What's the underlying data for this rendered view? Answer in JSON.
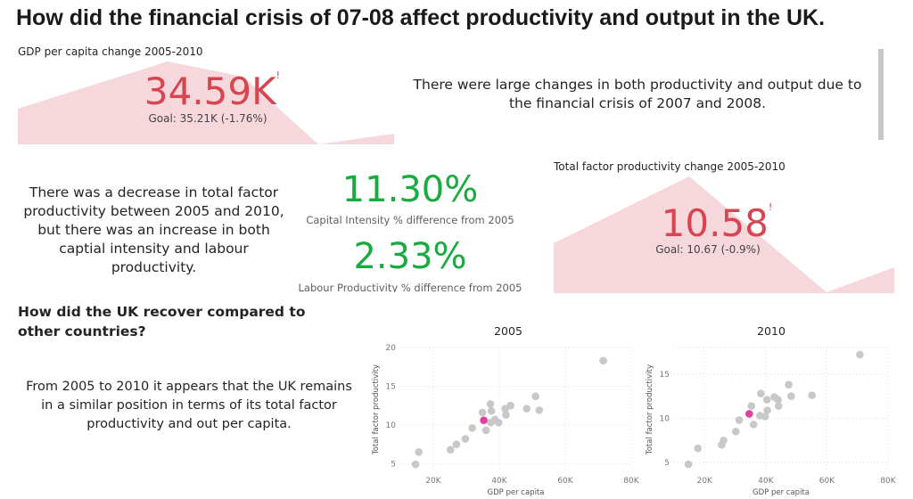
{
  "title": "How did the financial crisis of 07-08 affect productivity and output in the UK.",
  "gdp_card": {
    "title": "GDP per capita change 2005-2010",
    "value": "34.59K",
    "alert": "!",
    "goal": "Goal: 35.21K (-1.76%)",
    "status_color": "#d64550",
    "trend_fill": "#f6d7db"
  },
  "intro_text": "There were large changes in both productivity and output due to the financial crisis of 2007 and 2008.",
  "summary_text": "There was a decrease in total factor productivity between 2005 and 2010, but there was an increase in both captial intensity and labour productivity.",
  "kpis": [
    {
      "value": "11.30%",
      "label": "Capital Intensity % difference from 2005",
      "color": "#1aab40"
    },
    {
      "value": "2.33%",
      "label": "Labour Productivity % difference from 2005",
      "color": "#1aab40"
    }
  ],
  "tfp_card": {
    "title": "Total factor productivity change 2005-2010",
    "value": "10.58",
    "alert": "!",
    "goal": "Goal: 10.67 (-0.9%)",
    "status_color": "#d64550",
    "trend_fill": "#f6d7db"
  },
  "recovery": {
    "title": "How did the UK recover compared to other countries?",
    "text": "From 2005 to 2010 it appears that the UK remains in a similar position in terms of its total factor productivity and out per capita."
  },
  "chart_data": [
    {
      "type": "scatter",
      "title": "2005",
      "xlabel": "GDP per capita",
      "ylabel": "Total factor productivity",
      "xlim": [
        10000,
        80000
      ],
      "ylim": [
        4,
        20
      ],
      "grid": true,
      "xticks": [
        {
          "v": 20000,
          "label": "20K"
        },
        {
          "v": 40000,
          "label": "40K"
        },
        {
          "v": 60000,
          "label": "60K"
        },
        {
          "v": 80000,
          "label": "80K"
        }
      ],
      "yticks": [
        {
          "v": 5,
          "label": "5"
        },
        {
          "v": 10,
          "label": "10"
        },
        {
          "v": 15,
          "label": "15"
        },
        {
          "v": 20,
          "label": "20"
        }
      ],
      "highlight_color": "#e040a0",
      "point_color": "#c8c8c8",
      "points": [
        [
          71500,
          18.3
        ],
        [
          14600,
          4.9
        ],
        [
          15600,
          6.5
        ],
        [
          25200,
          6.8
        ],
        [
          27000,
          7.5
        ],
        [
          29700,
          8.2
        ],
        [
          31800,
          9.6
        ],
        [
          34900,
          11.6
        ],
        [
          36000,
          9.3
        ],
        [
          37300,
          12.7
        ],
        [
          37600,
          11.8
        ],
        [
          37400,
          10.3
        ],
        [
          38700,
          10.7
        ],
        [
          39800,
          10.3
        ],
        [
          41800,
          12.1
        ],
        [
          43400,
          12.5
        ],
        [
          42000,
          11.3
        ],
        [
          48300,
          12.1
        ],
        [
          51000,
          13.7
        ],
        [
          52100,
          11.9
        ]
      ],
      "highlight": [
        35300,
        10.6
      ]
    },
    {
      "type": "scatter",
      "title": "2010",
      "xlabel": "GDP per capita",
      "ylabel": "Total factor productivity",
      "xlim": [
        10000,
        80000
      ],
      "ylim": [
        4,
        18
      ],
      "grid": true,
      "xticks": [
        {
          "v": 20000,
          "label": "20K"
        },
        {
          "v": 40000,
          "label": "40K"
        },
        {
          "v": 60000,
          "label": "60K"
        },
        {
          "v": 80000,
          "label": "80K"
        }
      ],
      "yticks": [
        {
          "v": 5,
          "label": "5"
        },
        {
          "v": 10,
          "label": "10"
        },
        {
          "v": 15,
          "label": "15"
        }
      ],
      "highlight_color": "#e040a0",
      "point_color": "#c8c8c8",
      "points": [
        [
          70800,
          17.2
        ],
        [
          14700,
          4.8
        ],
        [
          17800,
          6.6
        ],
        [
          25600,
          7.0
        ],
        [
          26200,
          7.5
        ],
        [
          30200,
          8.5
        ],
        [
          31300,
          9.8
        ],
        [
          35300,
          11.4
        ],
        [
          36000,
          9.3
        ],
        [
          38100,
          10.3
        ],
        [
          38400,
          12.8
        ],
        [
          39800,
          10.2
        ],
        [
          40500,
          10.9
        ],
        [
          40400,
          12.1
        ],
        [
          42800,
          12.4
        ],
        [
          44000,
          12.1
        ],
        [
          44200,
          11.4
        ],
        [
          47500,
          13.8
        ],
        [
          48300,
          12.5
        ],
        [
          55100,
          12.6
        ]
      ],
      "highlight": [
        34600,
        10.5
      ]
    }
  ]
}
